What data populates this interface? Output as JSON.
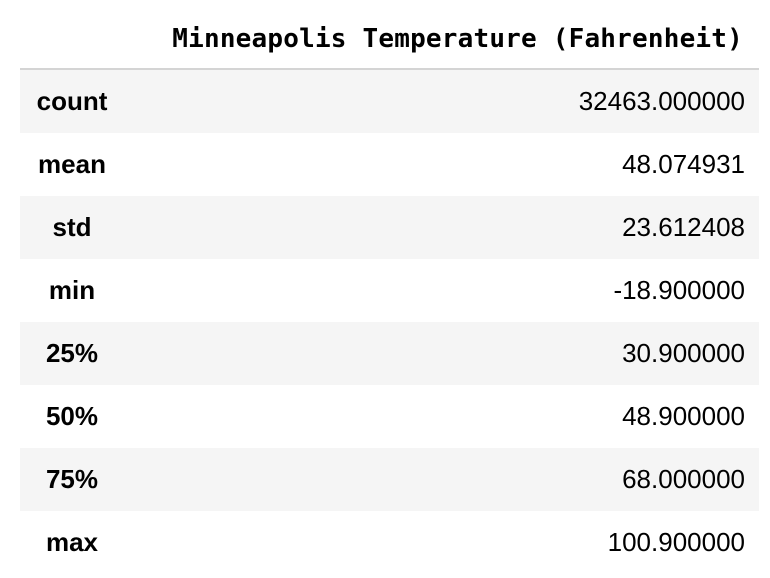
{
  "table": {
    "column_header": "Minneapolis Temperature (Fahrenheit)",
    "rows": [
      {
        "label": "count",
        "value": "32463.000000"
      },
      {
        "label": "mean",
        "value": "48.074931"
      },
      {
        "label": "std",
        "value": "23.612408"
      },
      {
        "label": "min",
        "value": "-18.900000"
      },
      {
        "label": "25%",
        "value": "30.900000"
      },
      {
        "label": "50%",
        "value": "48.900000"
      },
      {
        "label": "75%",
        "value": "68.000000"
      },
      {
        "label": "max",
        "value": "100.900000"
      }
    ]
  },
  "colors": {
    "stripe": "#f5f5f5",
    "header_rule": "#d4d4d4",
    "text": "#000000"
  }
}
